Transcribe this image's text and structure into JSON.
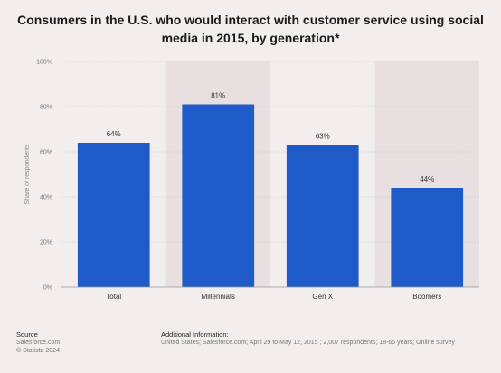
{
  "title": "Consumers in the U.S. who would interact with customer service using social media in 2015, by generation*",
  "chart_data": {
    "type": "bar",
    "categories": [
      "Total",
      "Millennials",
      "Gen X",
      "Boomers"
    ],
    "values": [
      64,
      81,
      63,
      44
    ],
    "value_labels": [
      "64%",
      "81%",
      "63%",
      "44%"
    ],
    "ylabel": "Share of respondents",
    "ylim": [
      0,
      100
    ],
    "yticks": [
      "0%",
      "20%",
      "40%",
      "60%",
      "80%",
      "100%"
    ],
    "grid": true,
    "bar_color": "#1f5bc8"
  },
  "footer": {
    "source_heading": "Source",
    "source_lines": [
      "Salesforce.com",
      "© Statista 2024"
    ],
    "additional_heading": "Additional Information:",
    "additional_text": "United States; Salesforce.com; April 29 to May 12, 2015 ; 2,007 respondents; 18-65 years; Online survey"
  },
  "colors": {
    "plot_background": "#f2eeee",
    "alt_band": "#e8e0e0",
    "bar": "#1f5bc8"
  }
}
